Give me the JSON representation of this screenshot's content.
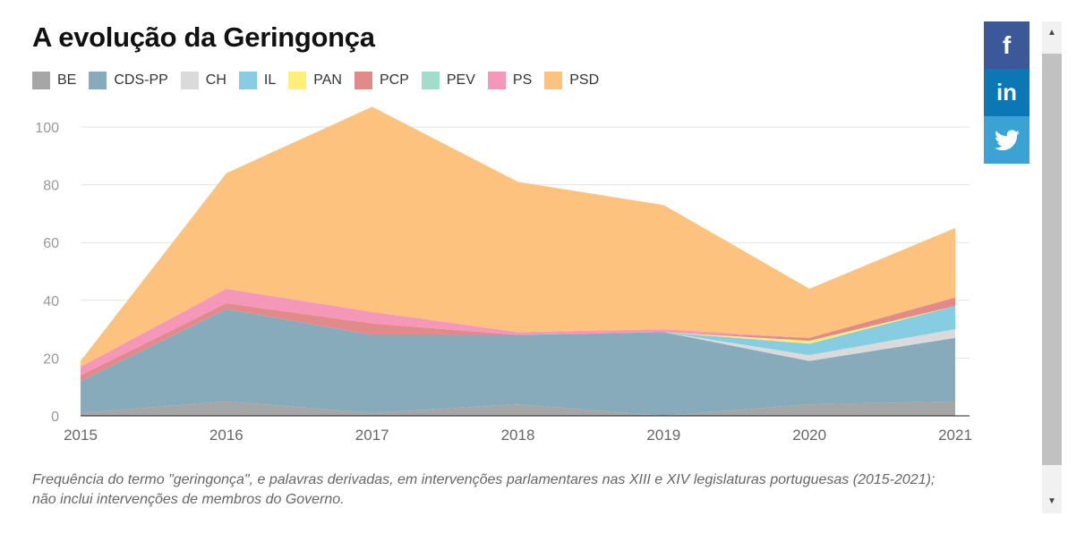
{
  "title": "A evolução da Geringonça",
  "caption_line1": "Frequência do termo \"geringonça\", e palavras derivadas, em intervenções parlamentares nas XIII e XIV legislaturas portuguesas (2015-2021);",
  "caption_line2": "não inclui intervenções de membros do Governo.",
  "share": {
    "facebook_label": "f",
    "linkedin_label": "in",
    "twitter_icon": "twitter-bird-icon"
  },
  "scrollbar": {
    "up_icon": "▲",
    "down_icon": "▼"
  },
  "chart_data": {
    "type": "area",
    "stacked": true,
    "x": [
      "2015",
      "2016",
      "2017",
      "2018",
      "2019",
      "2020",
      "2021"
    ],
    "ylim": [
      0,
      110
    ],
    "yticks": [
      0,
      20,
      40,
      60,
      80,
      100
    ],
    "grid": true,
    "legend_position": "top-left",
    "series": [
      {
        "name": "BE",
        "color": "#a6a6a6",
        "values": [
          1,
          5,
          1,
          4,
          0,
          4,
          5
        ]
      },
      {
        "name": "CDS-PP",
        "color": "#88abbb",
        "values": [
          11,
          32,
          27,
          24,
          29,
          15,
          22
        ]
      },
      {
        "name": "CH",
        "color": "#dadada",
        "values": [
          0,
          0,
          0,
          0,
          0,
          2,
          3
        ]
      },
      {
        "name": "IL",
        "color": "#87cde2",
        "values": [
          0,
          0,
          0,
          0,
          0,
          4,
          8
        ]
      },
      {
        "name": "PAN",
        "color": "#fdef79",
        "values": [
          0,
          0,
          0,
          0,
          0,
          1,
          0
        ]
      },
      {
        "name": "PCP",
        "color": "#e28a8a",
        "values": [
          2,
          2,
          4,
          0,
          0,
          1,
          3
        ]
      },
      {
        "name": "PEV",
        "color": "#a2dccb",
        "values": [
          0,
          0,
          0,
          0,
          0,
          0,
          0
        ]
      },
      {
        "name": "PS",
        "color": "#f597b9",
        "values": [
          3,
          5,
          4,
          1,
          1,
          0,
          0
        ]
      },
      {
        "name": "PSD",
        "color": "#fcc27e",
        "values": [
          2,
          40,
          71,
          52,
          43,
          17,
          24
        ]
      }
    ]
  }
}
